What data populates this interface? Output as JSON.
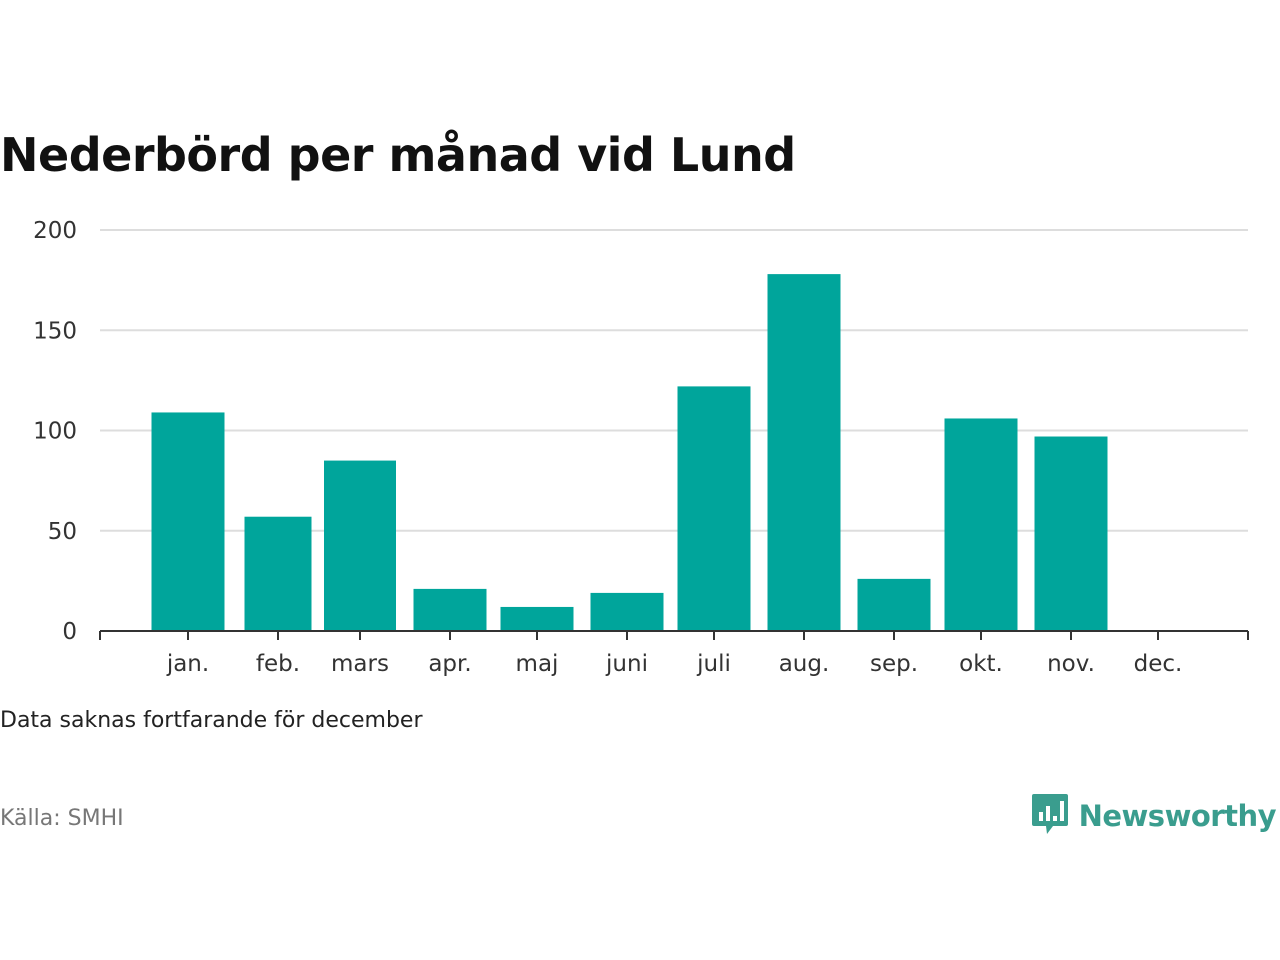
{
  "title": "Nederbörd per månad vid Lund",
  "note": "Data saknas fortfarande för december",
  "source": "Källa: SMHI",
  "brand": {
    "name": "Newsworthy",
    "icon": "bar-chart-speech-bubble-icon"
  },
  "colors": {
    "bar": "#00A59B",
    "brand": "#3A9D8E",
    "grid": "#DDDDDD",
    "axis": "#333333",
    "text": "#111111",
    "source": "#777777"
  },
  "chart_data": {
    "type": "bar",
    "categories": [
      "jan.",
      "feb.",
      "mars",
      "apr.",
      "maj",
      "juni",
      "juli",
      "aug.",
      "sep.",
      "okt.",
      "nov.",
      "dec."
    ],
    "values": [
      109,
      57,
      85,
      21,
      12,
      19,
      122,
      178,
      26,
      106,
      97,
      null
    ],
    "ylim": [
      0,
      200
    ],
    "yticks": [
      "0",
      "50",
      "100",
      "150",
      "200"
    ],
    "grid": true,
    "legend": "none"
  }
}
